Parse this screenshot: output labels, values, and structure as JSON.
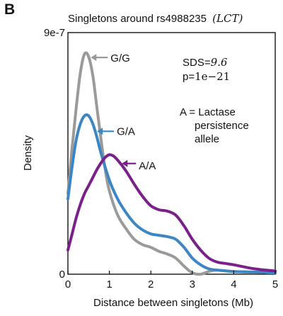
{
  "panel_letter": "B",
  "chart_data": {
    "type": "line",
    "title": "Singletons around rs4988235",
    "title_gene": "(LCT)",
    "xlabel": "Distance between singletons (Mb)",
    "ylabel": "Density",
    "xlim": [
      0,
      5
    ],
    "ylim": [
      0,
      9e-07
    ],
    "x_ticks": [
      "0",
      "1",
      "2",
      "3",
      "4",
      "5"
    ],
    "y_tick_labels": [
      "0",
      "9e-7"
    ],
    "grid": false,
    "annotations": {
      "sds_label": "SDS=",
      "sds_value": "9.6",
      "p_label": "p=",
      "p_value": "1e−21",
      "note_line1": "A = Lactase",
      "note_line2": "persistence",
      "note_line3": "allele"
    },
    "series": [
      {
        "name": "G/G",
        "color": "#9a9a9a",
        "x": [
          0,
          0.1,
          0.2,
          0.3,
          0.4,
          0.5,
          0.6,
          0.7,
          0.8,
          0.9,
          1.0,
          1.2,
          1.4,
          1.6,
          1.8,
          2.0,
          2.2,
          2.4,
          2.6,
          2.8,
          3.0,
          3.2,
          3.4,
          3.6,
          4.0,
          4.5,
          5.0
        ],
        "y": [
          3e-07,
          4.7e-07,
          6.2e-07,
          7.5e-07,
          8.2e-07,
          8.1e-07,
          7.4e-07,
          6.2e-07,
          5e-07,
          3.9e-07,
          3.1e-07,
          2.2e-07,
          1.7e-07,
          1.3e-07,
          1.1e-07,
          1e-07,
          8.5e-08,
          7.5e-08,
          6e-08,
          3e-08,
          5e-09,
          0.0,
          1e-08,
          1.5e-08,
          1e-08,
          8e-09,
          5e-09
        ]
      },
      {
        "name": "G/A",
        "color": "#3c86c4",
        "x": [
          0,
          0.1,
          0.2,
          0.3,
          0.4,
          0.5,
          0.6,
          0.7,
          0.8,
          1.0,
          1.2,
          1.4,
          1.6,
          1.8,
          2.0,
          2.2,
          2.4,
          2.6,
          2.8,
          3.0,
          3.2,
          3.4,
          3.6,
          4.0,
          4.5,
          5.0
        ],
        "y": [
          2.8e-07,
          4e-07,
          5e-07,
          5.6e-07,
          5.9e-07,
          5.9e-07,
          5.6e-07,
          5.1e-07,
          4.5e-07,
          3.5e-07,
          2.8e-07,
          2.3e-07,
          1.9e-07,
          1.65e-07,
          1.5e-07,
          1.45e-07,
          1.4e-07,
          1.3e-07,
          1e-07,
          6e-08,
          3.5e-08,
          2e-08,
          1.5e-08,
          1e-08,
          8e-09,
          5e-09
        ]
      },
      {
        "name": "A/A",
        "color": "#7b1f8a",
        "x": [
          0,
          0.1,
          0.2,
          0.3,
          0.4,
          0.5,
          0.6,
          0.7,
          0.8,
          0.9,
          1.0,
          1.1,
          1.2,
          1.4,
          1.6,
          1.8,
          2.0,
          2.2,
          2.4,
          2.6,
          2.8,
          3.0,
          3.2,
          3.4,
          3.6,
          3.8,
          4.0,
          4.5,
          5.0
        ],
        "y": [
          9e-08,
          1.5e-07,
          2.1e-07,
          2.6e-07,
          3e-07,
          3.3e-07,
          3.6e-07,
          3.9e-07,
          4.15e-07,
          4.35e-07,
          4.45e-07,
          4.4e-07,
          4.25e-07,
          3.85e-07,
          3.35e-07,
          2.9e-07,
          2.55e-07,
          2.4e-07,
          2.35e-07,
          2.2e-07,
          1.8e-07,
          1.3e-07,
          9e-08,
          6e-08,
          4.5e-08,
          4e-08,
          3.5e-08,
          2e-08,
          1.2e-08
        ]
      }
    ]
  }
}
